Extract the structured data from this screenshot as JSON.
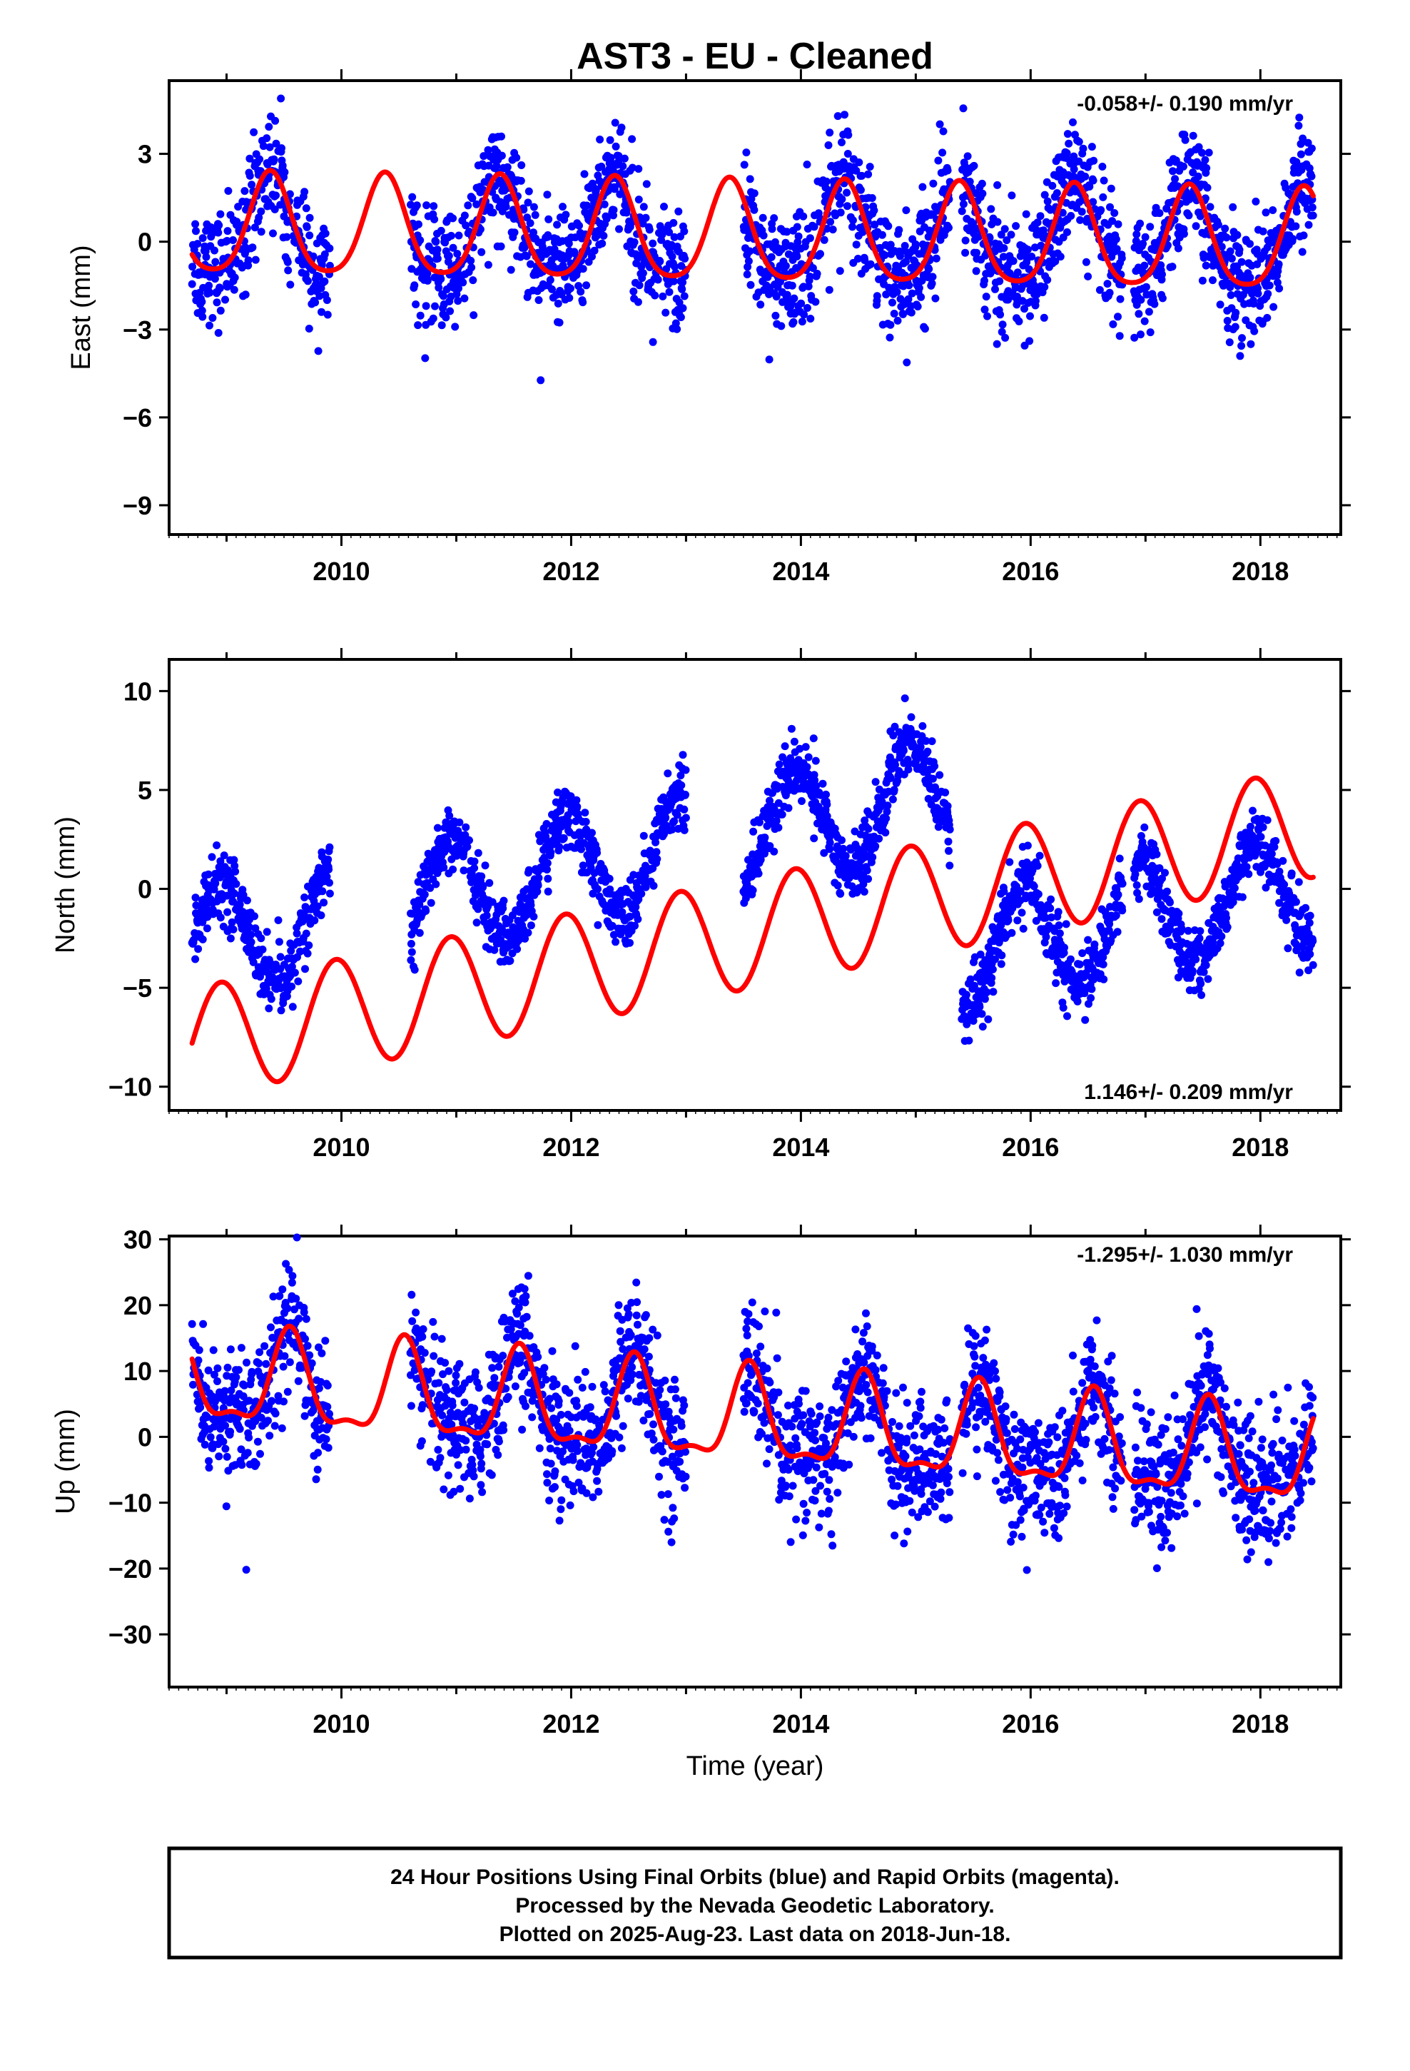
{
  "title": "AST3  - EU - Cleaned",
  "xlabel": "Time (year)",
  "caption": [
    "24 Hour Positions Using Final Orbits (blue) and Rapid Orbits (magenta).",
    "Processed by the Nevada Geodetic Laboratory.",
    "Plotted on 2025-Aug-23. Last data on 2018-Jun-18."
  ],
  "colors": {
    "observations": "#0000ff",
    "model": "#ff0000",
    "frame": "#000000"
  },
  "chart_data": [
    {
      "type": "scatter",
      "ylabel": "East (mm)",
      "rate_label": "-0.058+/- 0.190 mm/yr",
      "rate_position": "top-right",
      "xlim": [
        2008.5,
        2018.7
      ],
      "ylim": [
        -10,
        5.5
      ],
      "xticks": [
        2010,
        2012,
        2014,
        2016,
        2018
      ],
      "yticks": [
        3,
        0,
        -3,
        -6,
        -9
      ],
      "ytick_labels": [
        "3",
        "0",
        "−3",
        "−6",
        "−9"
      ],
      "data_segments": [
        [
          2008.7,
          2009.9
        ],
        [
          2010.6,
          2013.0
        ],
        [
          2013.5,
          2015.3
        ],
        [
          2015.4,
          2016.8
        ],
        [
          2016.9,
          2018.46
        ]
      ],
      "observations_summary": "daily positions scattering about the model with ~1.5 mm spread",
      "model": {
        "offset": 0.2,
        "rate": -0.058,
        "ref_year": 2013.5,
        "annual_amp": 1.7,
        "annual_phase_peak": 2009.38,
        "semiannual_amp": 0.3
      }
    },
    {
      "type": "scatter",
      "ylabel": "North (mm)",
      "rate_label": "1.146+/- 0.209 mm/yr",
      "rate_position": "bottom-right",
      "xlim": [
        2008.5,
        2018.7
      ],
      "ylim": [
        -11.2,
        11.6
      ],
      "xticks": [
        2010,
        2012,
        2014,
        2016,
        2018
      ],
      "yticks": [
        10,
        5,
        0,
        -5,
        -10
      ],
      "ytick_labels": [
        "10",
        "5",
        "0",
        "−5",
        "−10"
      ],
      "data_segments": [
        [
          2008.7,
          2009.9
        ],
        [
          2010.6,
          2013.0
        ],
        [
          2013.5,
          2015.3
        ],
        [
          2015.4,
          2016.8
        ],
        [
          2016.9,
          2018.46
        ]
      ],
      "observations_summary": "positions offset from model: about +5 mm before 2015.3, about −3 mm after",
      "model": {
        "offset": -2.3,
        "rate": 1.146,
        "ref_year": 2013.5,
        "annual_amp": 2.8,
        "annual_phase_peak": 2008.95,
        "semiannual_amp": 0
      }
    },
    {
      "type": "scatter",
      "ylabel": "Up (mm)",
      "rate_label": "-1.295+/- 1.030 mm/yr",
      "rate_position": "top-right",
      "xlim": [
        2008.5,
        2018.7
      ],
      "ylim": [
        -38,
        30.5
      ],
      "xticks": [
        2010,
        2012,
        2014,
        2016,
        2018
      ],
      "yticks": [
        30,
        20,
        10,
        0,
        -10,
        -20,
        -30
      ],
      "ytick_labels": [
        "30",
        "20",
        "10",
        "0",
        "−10",
        "−20",
        "−30"
      ],
      "data_segments": [
        [
          2008.7,
          2009.9
        ],
        [
          2010.6,
          2013.0
        ],
        [
          2013.5,
          2015.3
        ],
        [
          2015.4,
          2016.8
        ],
        [
          2016.9,
          2018.46
        ]
      ],
      "observations_summary": "daily positions scattering about the model with ~7 mm spread",
      "model": {
        "offset": 2.4,
        "rate": -1.295,
        "ref_year": 2013.5,
        "annual_amp": 6.8,
        "annual_phase_peak": 2009.55,
        "semiannual_amp": 2.5
      }
    }
  ]
}
